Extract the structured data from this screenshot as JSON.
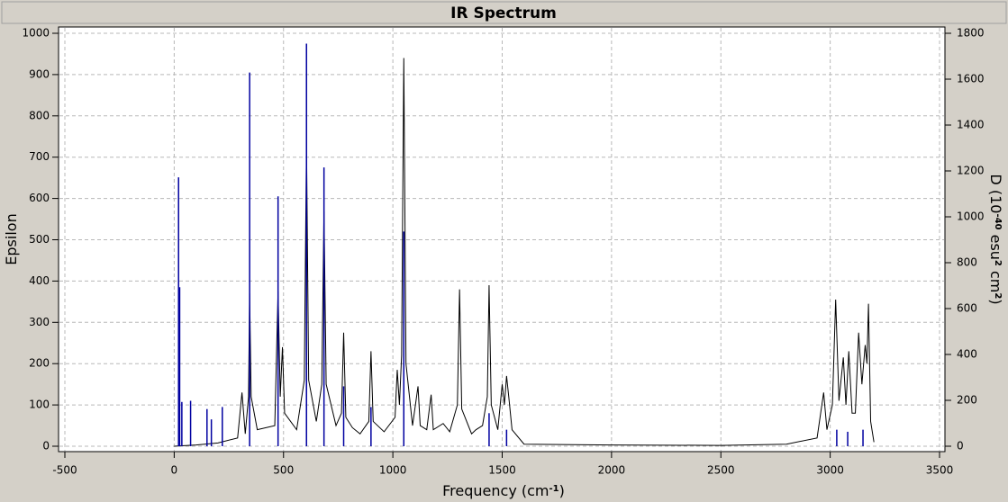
{
  "chart_data": {
    "type": "ir-spectrum",
    "title": "IR Spectrum",
    "x_label": [
      {
        "text": "Frequency (cm",
        "sup": false
      },
      {
        "text": "-1",
        "sup": true
      },
      {
        "text": ")",
        "sup": false
      }
    ],
    "y_label": [
      {
        "text": "Epsilon",
        "sup": false
      }
    ],
    "y2_label": [
      {
        "text": "D (10",
        "sup": false
      },
      {
        "text": "-40",
        "sup": true
      },
      {
        "text": " esu",
        "sup": false
      },
      {
        "text": "2",
        "sup": true
      },
      {
        "text": " cm",
        "sup": false
      },
      {
        "text": "2",
        "sup": true
      },
      {
        "text": ")",
        "sup": false
      }
    ],
    "xlim": [
      -500,
      3500
    ],
    "xticks": [
      -500,
      0,
      500,
      1000,
      1500,
      2000,
      2500,
      3000,
      3500
    ],
    "ylim": [
      0,
      1000
    ],
    "yticks": [
      0,
      100,
      200,
      300,
      400,
      500,
      600,
      700,
      800,
      900,
      1000
    ],
    "y2lim": [
      0,
      1800
    ],
    "y2ticks": [
      0,
      200,
      400,
      600,
      800,
      1000,
      1200,
      1400,
      1600,
      1800
    ],
    "grid": true,
    "series": [
      {
        "kind": "line",
        "color": "#000000",
        "x": [
          0,
          100,
          200,
          290,
          310,
          325,
          340,
          345,
          352,
          380,
          460,
          475,
          485,
          495,
          505,
          560,
          595,
          605,
          615,
          650,
          675,
          685,
          695,
          740,
          765,
          775,
          785,
          815,
          850,
          890,
          900,
          910,
          960,
          1010,
          1020,
          1030,
          1040,
          1050,
          1060,
          1090,
          1115,
          1125,
          1155,
          1175,
          1185,
          1230,
          1260,
          1295,
          1305,
          1315,
          1360,
          1380,
          1410,
          1432,
          1440,
          1450,
          1480,
          1500,
          1510,
          1520,
          1530,
          1545,
          1600,
          2000,
          2500,
          2800,
          2940,
          2970,
          2985,
          3010,
          3025,
          3040,
          3060,
          3072,
          3085,
          3100,
          3115,
          3130,
          3145,
          3160,
          3168,
          3175,
          3185,
          3200
        ],
        "values": [
          0,
          3,
          8,
          20,
          130,
          30,
          120,
          370,
          120,
          40,
          50,
          375,
          120,
          240,
          80,
          40,
          160,
          735,
          160,
          60,
          150,
          570,
          150,
          50,
          80,
          275,
          70,
          45,
          30,
          60,
          230,
          60,
          35,
          70,
          185,
          100,
          220,
          940,
          200,
          50,
          145,
          50,
          40,
          125,
          40,
          55,
          35,
          100,
          380,
          90,
          30,
          40,
          50,
          120,
          390,
          100,
          40,
          150,
          100,
          170,
          120,
          40,
          5,
          3,
          2,
          5,
          20,
          130,
          40,
          100,
          355,
          110,
          215,
          100,
          230,
          80,
          80,
          275,
          150,
          245,
          200,
          345,
          60,
          10
        ]
      },
      {
        "kind": "sticks",
        "axis": "y2",
        "color": "#0000a0",
        "x": [
          20,
          25,
          35,
          75,
          150,
          170,
          220,
          345,
          475,
          605,
          685,
          775,
          900,
          1050,
          1440,
          1520,
          3030,
          3080,
          3150
        ],
        "values": [
          1172,
          693,
          193,
          198,
          162,
          117,
          171,
          1629,
          1089,
          1755,
          1215,
          261,
          171,
          936,
          144,
          72,
          72,
          63,
          72
        ]
      }
    ]
  }
}
